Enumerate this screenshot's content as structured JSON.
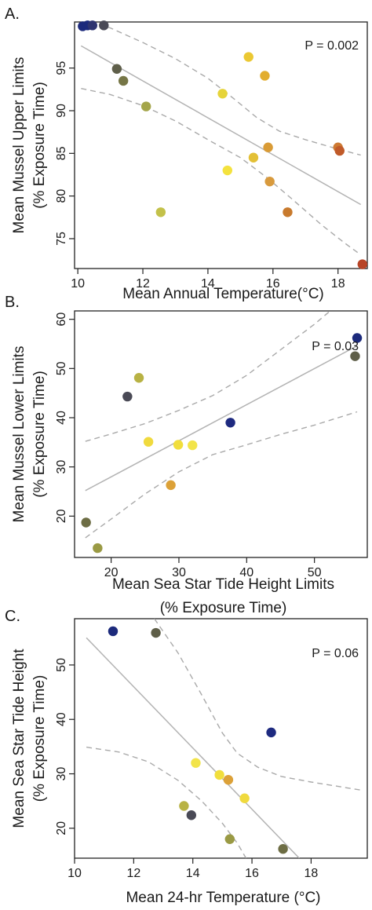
{
  "chart_data": [
    {
      "panel": "A.",
      "type": "scatter",
      "annotation": "P = 0.002",
      "xlabel": [
        "Mean Annual Temperature(°C)"
      ],
      "ylabel": [
        "Mean Mussel Upper Limits",
        "(% Exposure Time)"
      ],
      "xlim": [
        9.9,
        18.9
      ],
      "ylim": [
        71.5,
        100.4
      ],
      "xticks": [
        10,
        12,
        14,
        16,
        18
      ],
      "yticks": [
        75,
        80,
        85,
        90,
        95
      ],
      "fit_line": {
        "x": [
          10.1,
          18.7
        ],
        "y": [
          97.6,
          79.0
        ]
      },
      "ci_upper": {
        "x": [
          10.1,
          11,
          12,
          13,
          14,
          14.8,
          15.5,
          16.2,
          17,
          18,
          18.7
        ],
        "y": [
          100.8,
          99.7,
          98.0,
          96.1,
          93.8,
          91.4,
          89.2,
          87.6,
          86.6,
          85.5,
          84.8
        ]
      },
      "ci_lower": {
        "x": [
          10.1,
          11,
          12,
          13,
          14,
          15,
          15.8,
          16.6,
          17.5,
          18.2,
          18.7
        ],
        "y": [
          92.6,
          91.9,
          90.6,
          88.8,
          86.6,
          84.5,
          82.2,
          79.6,
          76.6,
          74.5,
          73.1
        ]
      },
      "points": [
        {
          "x": 10.15,
          "y": 99.9,
          "color": "#1c2a7c"
        },
        {
          "x": 10.3,
          "y": 100.0,
          "color": "#1c2a7c"
        },
        {
          "x": 10.45,
          "y": 100.0,
          "color": "#2e3470"
        },
        {
          "x": 10.8,
          "y": 100.0,
          "color": "#4a4a56"
        },
        {
          "x": 11.2,
          "y": 94.9,
          "color": "#5f5f4a"
        },
        {
          "x": 11.4,
          "y": 93.5,
          "color": "#767646"
        },
        {
          "x": 12.1,
          "y": 90.5,
          "color": "#a4a54a"
        },
        {
          "x": 12.55,
          "y": 78.1,
          "color": "#c3c14a"
        },
        {
          "x": 14.45,
          "y": 92.0,
          "color": "#e6d43a"
        },
        {
          "x": 14.6,
          "y": 83.0,
          "color": "#f4e23e"
        },
        {
          "x": 15.25,
          "y": 96.3,
          "color": "#ebc833"
        },
        {
          "x": 15.4,
          "y": 84.5,
          "color": "#e3c036"
        },
        {
          "x": 15.75,
          "y": 94.1,
          "color": "#e2ad2e"
        },
        {
          "x": 15.85,
          "y": 85.7,
          "color": "#d99b36"
        },
        {
          "x": 15.9,
          "y": 81.7,
          "color": "#d89a3d"
        },
        {
          "x": 16.45,
          "y": 78.1,
          "color": "#c87a2d"
        },
        {
          "x": 18.0,
          "y": 85.7,
          "color": "#cd7a33"
        },
        {
          "x": 18.05,
          "y": 85.3,
          "color": "#c05a29"
        },
        {
          "x": 18.75,
          "y": 72.0,
          "color": "#b84426"
        }
      ]
    },
    {
      "panel": "B.",
      "type": "scatter",
      "annotation": "P = 0.03",
      "xlabel": [
        "Mean Sea Star Tide Height Limits",
        "(% Exposure Time)"
      ],
      "ylabel": [
        "Mean Mussel Lower Limits",
        "(% Exposure Time)"
      ],
      "xlim": [
        14.6,
        57.8
      ],
      "ylim": [
        11.6,
        61.7
      ],
      "xticks": [
        20,
        30,
        40,
        50
      ],
      "yticks": [
        20,
        30,
        40,
        50,
        60
      ],
      "fit_line": {
        "x": [
          16.2,
          56.3
        ],
        "y": [
          25.2,
          54.6
        ]
      },
      "ci_upper": {
        "x": [
          16.2,
          20,
          25,
          30,
          35,
          40,
          45,
          50,
          53
        ],
        "y": [
          35.2,
          36.7,
          38.8,
          41.5,
          44.5,
          48.6,
          53.8,
          59.0,
          62.5
        ]
      },
      "ci_lower": {
        "x": [
          16.2,
          20,
          25,
          30,
          35,
          40,
          45,
          50,
          56.3
        ],
        "y": [
          15.6,
          19.4,
          24.5,
          29.0,
          32.5,
          34.5,
          36.6,
          38.5,
          41.2
        ]
      },
      "points": [
        {
          "x": 16.3,
          "y": 18.7,
          "color": "#6d6d44"
        },
        {
          "x": 18.0,
          "y": 13.5,
          "color": "#9a9a44"
        },
        {
          "x": 22.4,
          "y": 44.3,
          "color": "#4a4a56"
        },
        {
          "x": 24.1,
          "y": 48.1,
          "color": "#b8b244"
        },
        {
          "x": 25.5,
          "y": 35.1,
          "color": "#f0da3e"
        },
        {
          "x": 28.8,
          "y": 26.3,
          "color": "#dca138"
        },
        {
          "x": 29.9,
          "y": 34.5,
          "color": "#f1de3c"
        },
        {
          "x": 32.0,
          "y": 34.4,
          "color": "#f2e44a"
        },
        {
          "x": 37.6,
          "y": 39.0,
          "color": "#1e2a80"
        },
        {
          "x": 56.0,
          "y": 52.5,
          "color": "#5e5e48"
        },
        {
          "x": 56.3,
          "y": 56.2,
          "color": "#1c2a7c"
        }
      ]
    },
    {
      "panel": "C.",
      "type": "scatter",
      "annotation": "P = 0.06",
      "xlabel": [
        "Mean 24-hr Temperature (°C)"
      ],
      "ylabel": [
        "Mean Sea Star Tide Height",
        "(% Exposure Time)"
      ],
      "xlim": [
        10,
        19.9
      ],
      "ylim": [
        14.5,
        58.5
      ],
      "xticks": [
        10,
        12,
        14,
        16,
        18
      ],
      "yticks": [
        20,
        30,
        40,
        50
      ],
      "fit_line": {
        "x": [
          10.4,
          17.6
        ],
        "y": [
          55.0,
          14.5
        ]
      },
      "ci_upper": {
        "x": [
          12.7,
          13.5,
          14.3,
          15,
          15.5,
          16.2,
          17,
          18,
          19.7
        ],
        "y": [
          58.5,
          52.2,
          44.5,
          37.5,
          33.8,
          31.2,
          29.5,
          28.5,
          27.0
        ]
      },
      "ci_lower": {
        "x": [
          10.4,
          11.5,
          12.5,
          13.5,
          14.3,
          15,
          15.5,
          15.8
        ],
        "y": [
          34.9,
          34.0,
          32.2,
          28.8,
          25.0,
          20.9,
          17.3,
          14.5
        ]
      },
      "points": [
        {
          "x": 11.3,
          "y": 56.2,
          "color": "#1c2a7c"
        },
        {
          "x": 12.75,
          "y": 55.9,
          "color": "#5e5e48"
        },
        {
          "x": 13.7,
          "y": 24.1,
          "color": "#b8b244"
        },
        {
          "x": 13.95,
          "y": 22.4,
          "color": "#4a4a56"
        },
        {
          "x": 14.1,
          "y": 32.0,
          "color": "#f2e44a"
        },
        {
          "x": 14.9,
          "y": 29.8,
          "color": "#f1de3c"
        },
        {
          "x": 15.2,
          "y": 28.9,
          "color": "#dca138"
        },
        {
          "x": 15.25,
          "y": 18.0,
          "color": "#9a9a44"
        },
        {
          "x": 15.75,
          "y": 25.5,
          "color": "#f0da3e"
        },
        {
          "x": 16.65,
          "y": 37.6,
          "color": "#1e2a80"
        },
        {
          "x": 17.05,
          "y": 16.2,
          "color": "#6d6d44"
        }
      ]
    }
  ]
}
